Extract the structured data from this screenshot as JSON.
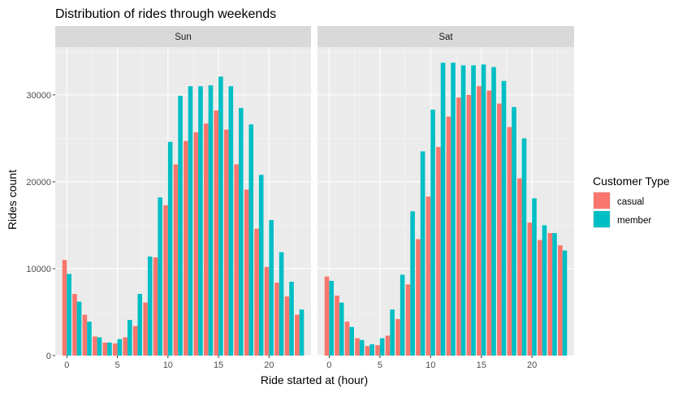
{
  "chart_data": {
    "type": "bar",
    "title": "Distribution of rides through weekends",
    "xlabel": "Ride started at (hour)",
    "ylabel": "Rides count",
    "ylim": [
      0,
      35500
    ],
    "xlim": [
      -1.15,
      24.15
    ],
    "x_ticks": [
      0,
      5,
      10,
      15,
      20
    ],
    "y_ticks": [
      0,
      10000,
      20000,
      30000
    ],
    "grid": true,
    "legend": {
      "title": "Customer Type",
      "placement": "right",
      "entries": [
        {
          "name": "casual",
          "color": "#F8766D"
        },
        {
          "name": "member",
          "color": "#00BFC4"
        }
      ]
    },
    "hours": [
      0,
      1,
      2,
      3,
      4,
      5,
      6,
      7,
      8,
      9,
      10,
      11,
      12,
      13,
      14,
      15,
      16,
      17,
      18,
      19,
      20,
      21,
      22,
      23
    ],
    "panels": [
      {
        "label": "Sun",
        "series": [
          {
            "name": "casual",
            "values": [
              11000,
              7100,
              4700,
              2200,
              1500,
              1400,
              2100,
              3400,
              6100,
              11300,
              17300,
              22000,
              24700,
              25700,
              26700,
              28200,
              26000,
              22000,
              19100,
              14600,
              10200,
              8400,
              6800,
              4700
            ]
          },
          {
            "name": "member",
            "values": [
              9400,
              6200,
              3900,
              2100,
              1500,
              1900,
              4100,
              7100,
              11400,
              18200,
              24600,
              29900,
              31000,
              31000,
              31100,
              32100,
              31000,
              28500,
              26600,
              20800,
              15600,
              11900,
              8500,
              5300
            ]
          }
        ]
      },
      {
        "label": "Sat",
        "series": [
          {
            "name": "casual",
            "values": [
              9100,
              6900,
              3900,
              2000,
              1100,
              1200,
              2300,
              4200,
              8200,
              13400,
              18300,
              24000,
              27500,
              29700,
              30000,
              31000,
              30500,
              29000,
              26300,
              20400,
              15300,
              13300,
              14100,
              12700
            ]
          },
          {
            "name": "member",
            "values": [
              8600,
              6100,
              3300,
              1800,
              1300,
              2000,
              5300,
              9300,
              16600,
              23500,
              28300,
              33700,
              33700,
              33400,
              33400,
              33500,
              33200,
              31600,
              28600,
              25000,
              18100,
              15000,
              14100,
              12100
            ]
          }
        ]
      }
    ]
  }
}
